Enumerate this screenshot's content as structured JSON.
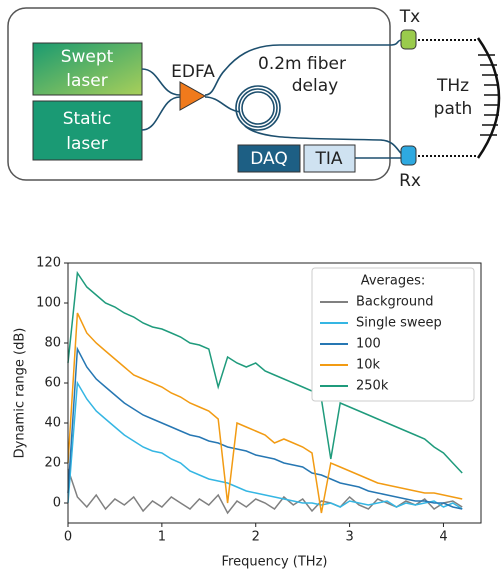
{
  "diagram": {
    "swept_laser": [
      "Swept",
      "laser"
    ],
    "static_laser": [
      "Static",
      "laser"
    ],
    "edfa": "EDFA",
    "fiber_delay": [
      "0.2m fiber",
      "delay"
    ],
    "daq": "DAQ",
    "tia": "TIA",
    "tx": "Tx",
    "rx": "Rx",
    "thz_path": [
      "THz",
      "path"
    ]
  },
  "chart_data": {
    "type": "line",
    "xlabel": "Frequency (THz)",
    "ylabel": "Dynamic range (dB)",
    "xlim": [
      0,
      4.4
    ],
    "ylim": [
      -10,
      120
    ],
    "xticks": [
      0,
      1,
      2,
      3,
      4
    ],
    "yticks": [
      0,
      20,
      40,
      60,
      80,
      100,
      120
    ],
    "legend_title": "Averages:",
    "legend": "upper right",
    "x": [
      0,
      0.1,
      0.2,
      0.3,
      0.4,
      0.5,
      0.6,
      0.7,
      0.8,
      0.9,
      1.0,
      1.1,
      1.2,
      1.3,
      1.4,
      1.5,
      1.6,
      1.7,
      1.8,
      1.9,
      2.0,
      2.1,
      2.2,
      2.3,
      2.4,
      2.5,
      2.6,
      2.7,
      2.8,
      2.9,
      3.0,
      3.1,
      3.2,
      3.3,
      3.4,
      3.5,
      3.6,
      3.7,
      3.8,
      3.9,
      4.0,
      4.1,
      4.2
    ],
    "series": [
      {
        "name": "Background",
        "color": "#808080",
        "values": [
          17,
          3,
          -2,
          4,
          -3,
          2,
          -1,
          3,
          -4,
          1,
          -2,
          3,
          0,
          -3,
          2,
          -1,
          4,
          -5,
          1,
          -2,
          2,
          0,
          -3,
          3,
          -1,
          2,
          -4,
          1,
          0,
          -2,
          3,
          -1,
          -3,
          2,
          0,
          -2,
          1,
          -1,
          2,
          -3,
          0,
          1,
          -2
        ]
      },
      {
        "name": "Single sweep",
        "color": "#35b6e3",
        "values": [
          0,
          60,
          52,
          46,
          42,
          38,
          34,
          31,
          28,
          26,
          25,
          22,
          20,
          16,
          14,
          12,
          11,
          10,
          8,
          6,
          5,
          4,
          3,
          2,
          1,
          0,
          0,
          -1,
          0,
          -2,
          1,
          0,
          -1,
          0,
          1,
          -2,
          0,
          -1,
          0,
          1,
          -2,
          0,
          -3
        ]
      },
      {
        "name": "100",
        "color": "#2677b3",
        "values": [
          5,
          77,
          68,
          62,
          58,
          54,
          50,
          47,
          44,
          42,
          40,
          38,
          36,
          34,
          33,
          31,
          30,
          28,
          27,
          26,
          24,
          23,
          22,
          20,
          19,
          18,
          15,
          14,
          12,
          10,
          9,
          8,
          6,
          5,
          4,
          3,
          2,
          1,
          1,
          0,
          0,
          -2,
          -3
        ]
      },
      {
        "name": "10k",
        "color": "#f29b13",
        "values": [
          20,
          95,
          85,
          80,
          76,
          72,
          68,
          64,
          62,
          60,
          58,
          55,
          53,
          50,
          48,
          46,
          42,
          0,
          40,
          38,
          36,
          34,
          30,
          32,
          30,
          28,
          25,
          -5,
          20,
          18,
          16,
          14,
          12,
          10,
          9,
          8,
          7,
          6,
          5,
          5,
          4,
          3,
          2
        ]
      },
      {
        "name": "250k",
        "color": "#1f9b7c",
        "values": [
          70,
          115,
          108,
          104,
          100,
          98,
          95,
          93,
          90,
          88,
          87,
          85,
          83,
          80,
          79,
          77,
          58,
          73,
          70,
          68,
          70,
          66,
          64,
          62,
          60,
          58,
          56,
          52,
          22,
          50,
          48,
          46,
          44,
          42,
          40,
          38,
          36,
          34,
          32,
          28,
          25,
          20,
          15
        ]
      }
    ]
  }
}
